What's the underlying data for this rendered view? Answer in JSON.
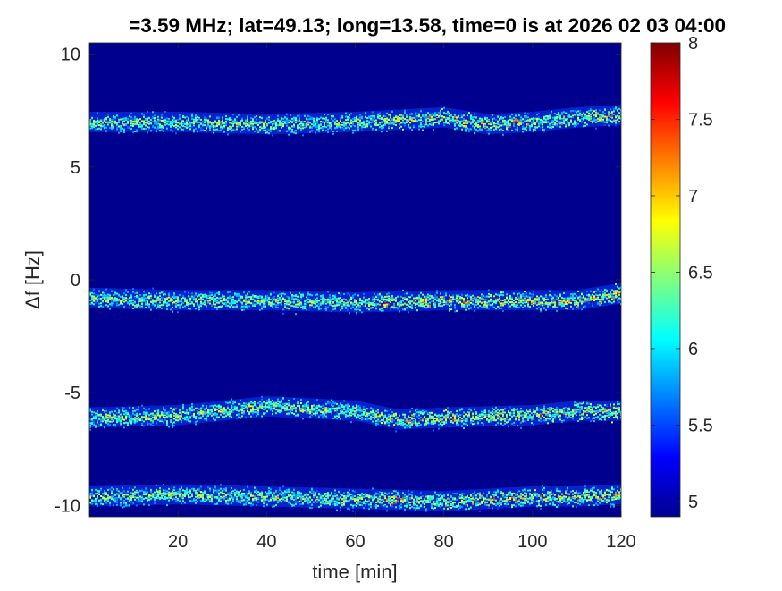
{
  "chart_data": {
    "type": "heatmap",
    "title": "=3.59 MHz;  lat=49.13; long=13.58, time=0 is at 2026 02 03 04:00",
    "xlabel": "time [min]",
    "ylabel": "Δf [Hz]",
    "xlim": [
      0,
      120
    ],
    "ylim": [
      -10.5,
      10.5
    ],
    "xticks": [
      20,
      40,
      60,
      80,
      100,
      120
    ],
    "yticks": [
      10,
      5,
      0,
      -5,
      -10
    ],
    "colorbar": {
      "colormap": "jet",
      "range": [
        4.9,
        8.0
      ],
      "ticks": [
        8,
        7.5,
        7,
        6.5,
        6,
        5.5,
        5
      ],
      "background_color": "#00008f"
    },
    "bands": [
      {
        "center_hz": 7.0,
        "width_hz": 0.9,
        "center_profile": {
          "t_min": [
            0,
            20,
            40,
            60,
            80,
            90,
            100,
            110,
            120
          ],
          "df_hz": [
            7.0,
            7.0,
            6.9,
            7.0,
            7.2,
            6.9,
            7.0,
            7.2,
            7.3
          ]
        }
      },
      {
        "center_hz": -0.8,
        "width_hz": 0.9,
        "center_profile": {
          "t_min": [
            0,
            20,
            40,
            60,
            80,
            100,
            110,
            120
          ],
          "df_hz": [
            -0.8,
            -0.9,
            -0.9,
            -1.0,
            -0.9,
            -0.9,
            -0.9,
            -0.6
          ]
        }
      },
      {
        "center_hz": -6.0,
        "width_hz": 0.9,
        "center_profile": {
          "t_min": [
            0,
            20,
            40,
            60,
            70,
            80,
            100,
            110,
            120
          ],
          "df_hz": [
            -6.1,
            -6.0,
            -5.6,
            -5.8,
            -6.2,
            -6.1,
            -6.0,
            -5.8,
            -5.8
          ]
        }
      },
      {
        "center_hz": -9.6,
        "width_hz": 0.9,
        "center_profile": {
          "t_min": [
            0,
            20,
            40,
            60,
            80,
            100,
            110,
            120
          ],
          "df_hz": [
            -9.6,
            -9.5,
            -9.6,
            -9.7,
            -9.8,
            -9.6,
            -9.6,
            -9.5
          ]
        }
      }
    ]
  }
}
